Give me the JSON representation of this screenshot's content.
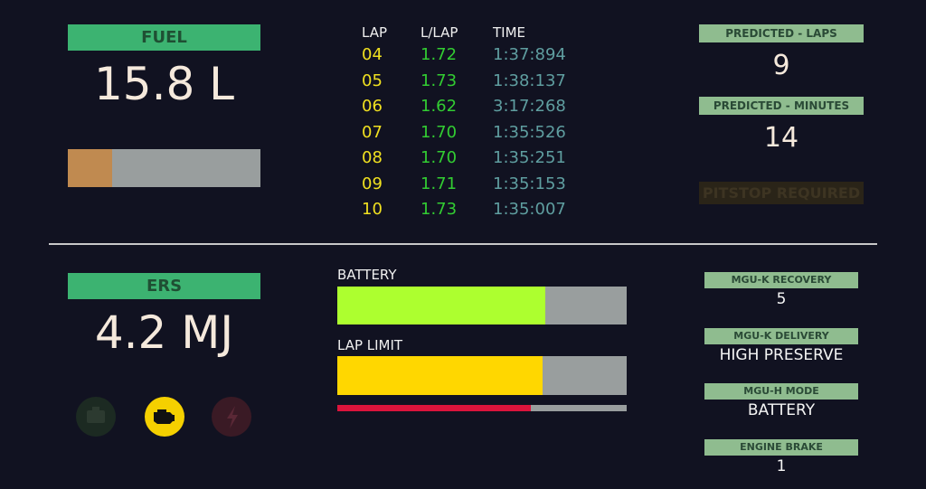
{
  "fuel": {
    "label": "FUEL",
    "value": "15.8 L",
    "gauge_percent": 23
  },
  "laps": {
    "headers": [
      "LAP",
      "L/LAP",
      "TIME"
    ],
    "rows": [
      [
        "04",
        "1.72",
        "1:37:894"
      ],
      [
        "05",
        "1.73",
        "1:38:137"
      ],
      [
        "06",
        "1.62",
        "3:17:268"
      ],
      [
        "07",
        "1.70",
        "1:35:526"
      ],
      [
        "08",
        "1.70",
        "1:35:251"
      ],
      [
        "09",
        "1.71",
        "1:35:153"
      ],
      [
        "10",
        "1.73",
        "1:35:007"
      ]
    ]
  },
  "predicted": {
    "laps_label": "PREDICTED - LAPS",
    "laps": "9",
    "minutes_label": "PREDICTED - MINUTES",
    "minutes": "14",
    "pitstop": "PITSTOP REQUIRED"
  },
  "ers": {
    "label": "ERS",
    "value": "4.2 MJ",
    "battery_label": "BATTERY",
    "battery_percent": 72,
    "lap_limit_label": "LAP LIMIT",
    "lap_limit_percent": 71,
    "lap_usage_percent": 67
  },
  "settings": [
    {
      "label": "MGU-K RECOVERY",
      "value": "5"
    },
    {
      "label": "MGU-K DELIVERY",
      "value": "HIGH PRESERVE"
    },
    {
      "label": "MGU-H MODE",
      "value": "BATTERY"
    },
    {
      "label": "ENGINE BRAKE",
      "value": "1"
    }
  ]
}
